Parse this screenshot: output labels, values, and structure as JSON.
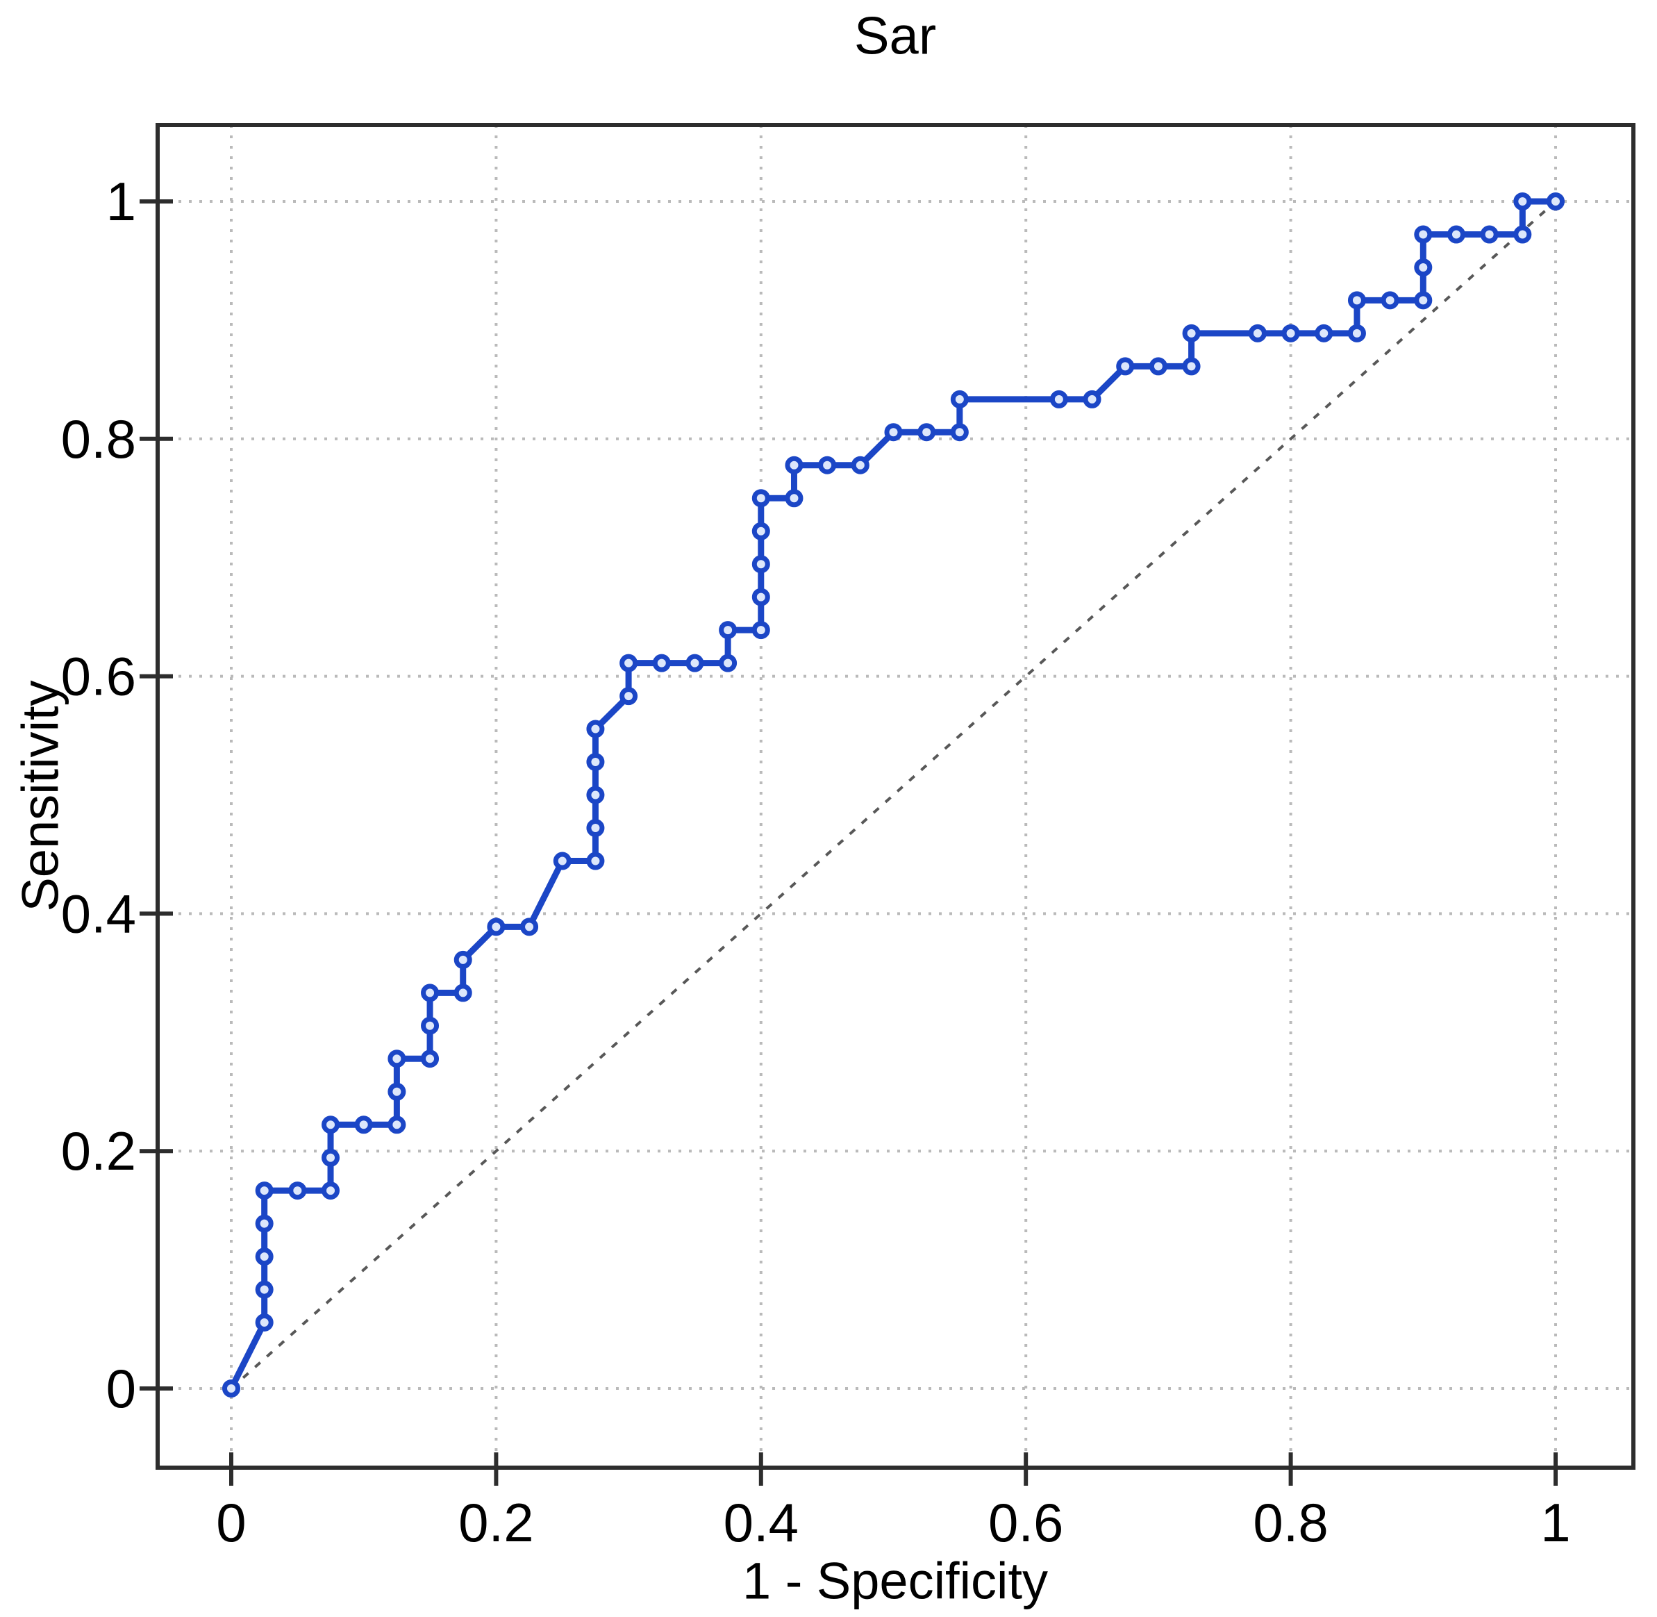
{
  "chart_data": {
    "type": "line",
    "title": "Sar",
    "xlabel": "1 - Specificity",
    "ylabel": "Sensitivity",
    "xlim": [
      0,
      1
    ],
    "ylim": [
      0,
      1
    ],
    "grid": true,
    "grid_style": "dotted",
    "xticks": {
      "values": [
        0,
        0.2,
        0.4,
        0.6,
        0.8,
        1
      ],
      "labels": [
        "0",
        "0.2",
        "0.4",
        "0.6",
        "0.8",
        "1"
      ]
    },
    "yticks": {
      "values": [
        0,
        0.2,
        0.4,
        0.6,
        0.8,
        1
      ],
      "labels": [
        "0",
        "0.2",
        "0.4",
        "0.6",
        "0.8",
        "1"
      ]
    },
    "series": [
      {
        "name": "ROC curve",
        "style": "solid",
        "marker": "circle",
        "points": [
          [
            0,
            0
          ],
          [
            0.025,
            0.0556
          ],
          [
            0.025,
            0.0833
          ],
          [
            0.025,
            0.1111
          ],
          [
            0.025,
            0.1389
          ],
          [
            0.025,
            0.1667
          ],
          [
            0.05,
            0.1667
          ],
          [
            0.075,
            0.1667
          ],
          [
            0.075,
            0.1944
          ],
          [
            0.075,
            0.2222
          ],
          [
            0.1,
            0.2222
          ],
          [
            0.125,
            0.2222
          ],
          [
            0.125,
            0.25
          ],
          [
            0.125,
            0.2778
          ],
          [
            0.15,
            0.2778
          ],
          [
            0.15,
            0.3056
          ],
          [
            0.15,
            0.3333
          ],
          [
            0.175,
            0.3333
          ],
          [
            0.175,
            0.3611
          ],
          [
            0.2,
            0.3889
          ],
          [
            0.225,
            0.3889
          ],
          [
            0.25,
            0.4444
          ],
          [
            0.275,
            0.4444
          ],
          [
            0.275,
            0.4722
          ],
          [
            0.275,
            0.5
          ],
          [
            0.275,
            0.5278
          ],
          [
            0.275,
            0.5556
          ],
          [
            0.3,
            0.5833
          ],
          [
            0.3,
            0.6111
          ],
          [
            0.325,
            0.6111
          ],
          [
            0.35,
            0.6111
          ],
          [
            0.375,
            0.6111
          ],
          [
            0.375,
            0.6389
          ],
          [
            0.4,
            0.6389
          ],
          [
            0.4,
            0.6667
          ],
          [
            0.4,
            0.6944
          ],
          [
            0.4,
            0.7222
          ],
          [
            0.4,
            0.75
          ],
          [
            0.425,
            0.75
          ],
          [
            0.425,
            0.7778
          ],
          [
            0.45,
            0.7778
          ],
          [
            0.475,
            0.7778
          ],
          [
            0.5,
            0.8056
          ],
          [
            0.525,
            0.8056
          ],
          [
            0.55,
            0.8056
          ],
          [
            0.55,
            0.8333
          ],
          [
            0.625,
            0.8333
          ],
          [
            0.65,
            0.8333
          ],
          [
            0.675,
            0.8611
          ],
          [
            0.7,
            0.8611
          ],
          [
            0.725,
            0.8611
          ],
          [
            0.725,
            0.8889
          ],
          [
            0.775,
            0.8889
          ],
          [
            0.8,
            0.8889
          ],
          [
            0.825,
            0.8889
          ],
          [
            0.85,
            0.8889
          ],
          [
            0.85,
            0.9167
          ],
          [
            0.875,
            0.9167
          ],
          [
            0.9,
            0.9167
          ],
          [
            0.9,
            0.9444
          ],
          [
            0.9,
            0.9722
          ],
          [
            0.925,
            0.9722
          ],
          [
            0.95,
            0.9722
          ],
          [
            0.975,
            0.9722
          ],
          [
            0.975,
            1
          ],
          [
            1,
            1
          ]
        ]
      },
      {
        "name": "reference diagonal",
        "style": "dashed",
        "marker": "none",
        "points": [
          [
            0,
            0
          ],
          [
            1,
            1
          ]
        ]
      }
    ],
    "colors": {
      "curve": "#1b46c6",
      "marker_fill": "#dde7fb",
      "reference": "#585858",
      "grid": "#bababa",
      "axis": "#2d2d2d",
      "text": "#000000",
      "background": "#ffffff"
    }
  }
}
